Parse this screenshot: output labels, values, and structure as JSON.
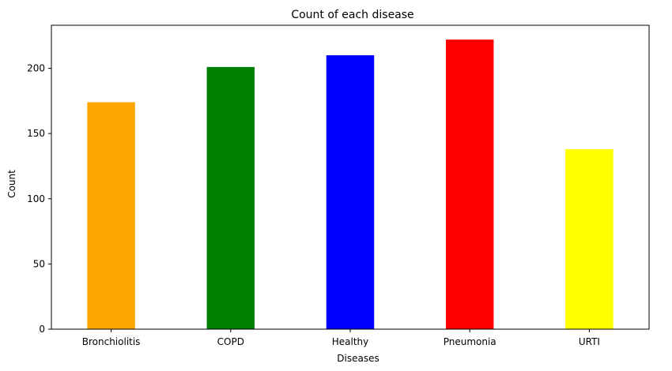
{
  "chart_data": {
    "type": "bar",
    "title": "Count of each disease",
    "xlabel": "Diseases",
    "ylabel": "Count",
    "categories": [
      "Bronchiolitis",
      "COPD",
      "Healthy",
      "Pneumonia",
      "URTI"
    ],
    "values": [
      174,
      201,
      210,
      222,
      138
    ],
    "colors": [
      "#ffa500",
      "#008000",
      "#0000ff",
      "#ff0000",
      "#ffff00"
    ],
    "ylim": [
      0,
      233
    ],
    "yticks": [
      0,
      50,
      100,
      150,
      200
    ],
    "grid": false,
    "legend": "none"
  }
}
